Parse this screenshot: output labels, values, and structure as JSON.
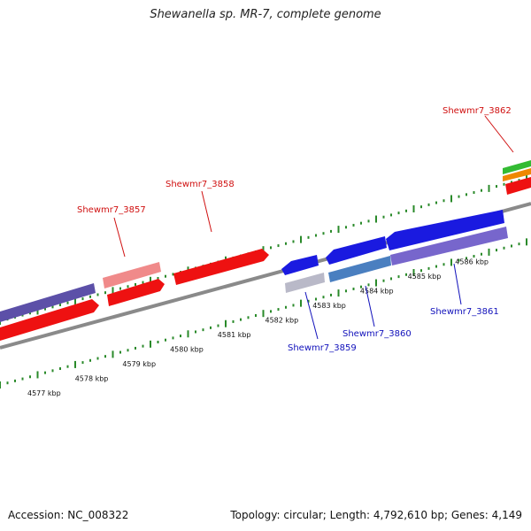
{
  "title": "Shewanella sp. MR-7, complete genome",
  "footer": {
    "accession": "Accession: NC_008322",
    "summary": "Topology: circular; Length: 4,792,610 bp; Genes: 4,149"
  },
  "colors": {
    "backbone": "#8a8a8a",
    "forward_gene": "#ee1111",
    "forward_gene_light": "#f08a8a",
    "reverse_gene": "#1a1ae0",
    "reverse_gene_grey": "#b9b9c8",
    "steel_blue": "#4a7fc0",
    "slate_purple": "#5c50a8",
    "purple_light": "#7766cc",
    "green": "#33bb33",
    "orange": "#ee8800",
    "tick": "#2a8a2a",
    "forward_label": "#d01010",
    "reverse_label": "#1111bb"
  },
  "scale_labels": [
    "4577 kbp",
    "4578 kbp",
    "4579 kbp",
    "4580 kbp",
    "4581 kbp",
    "4582 kbp",
    "4583 kbp",
    "4584 kbp",
    "4585 kbp",
    "4586 kbp"
  ],
  "gene_labels": {
    "forward": [
      "Shewmr7_3857",
      "Shewmr7_3858",
      "Shewmr7_3862"
    ],
    "reverse": [
      "Shewmr7_3859",
      "Shewmr7_3860",
      "Shewmr7_3861"
    ]
  }
}
